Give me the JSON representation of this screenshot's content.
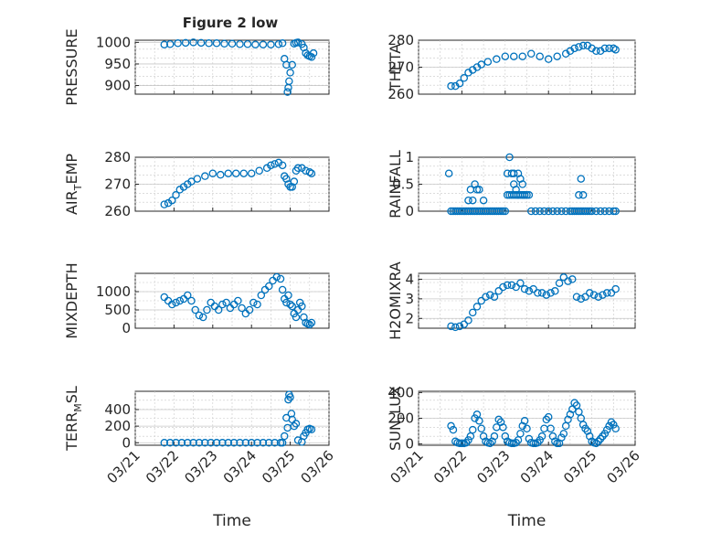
{
  "figure": {
    "title": "Figure 2 low",
    "xlabel": "Time",
    "x_tick_labels": [
      "03/21",
      "03/22",
      "03/23",
      "03/24",
      "03/25",
      "03/26"
    ]
  },
  "colors": {
    "marker": "#0072BD",
    "axis": "#262626",
    "grid": "#c8c8c8"
  },
  "chart_data": [
    {
      "type": "scatter",
      "name": "pressure",
      "ylabel": "PRESSURE",
      "ylabel_sub": null,
      "xlim": [
        0,
        5
      ],
      "ylim": [
        880,
        1005
      ],
      "yticks": [
        900,
        950,
        1000
      ],
      "xlabel": "",
      "x": [
        0.75,
        0.9,
        1.1,
        1.3,
        1.5,
        1.7,
        1.9,
        2.1,
        2.3,
        2.5,
        2.7,
        2.9,
        3.1,
        3.3,
        3.5,
        3.7,
        3.8,
        3.85,
        3.9,
        3.93,
        3.95,
        3.97,
        4.0,
        4.05,
        4.1,
        4.15,
        4.2,
        4.3,
        4.35,
        4.4,
        4.45,
        4.5,
        4.55,
        4.6
      ],
      "y": [
        995,
        996,
        998,
        999,
        1000,
        999,
        998,
        998,
        997,
        997,
        996,
        996,
        995,
        995,
        995,
        996,
        998,
        962,
        948,
        885,
        895,
        910,
        930,
        948,
        997,
        999,
        1000,
        996,
        988,
        975,
        970,
        968,
        966,
        975
      ]
    },
    {
      "type": "scatter",
      "name": "theta",
      "ylabel": "THETA",
      "ylabel_sub": null,
      "xlim": [
        0,
        5
      ],
      "ylim": [
        260,
        280
      ],
      "yticks": [
        260,
        270,
        280
      ],
      "xlabel": "",
      "x": [
        0.75,
        0.85,
        0.95,
        1.05,
        1.15,
        1.25,
        1.35,
        1.45,
        1.6,
        1.8,
        2.0,
        2.2,
        2.4,
        2.6,
        2.8,
        3.0,
        3.2,
        3.4,
        3.5,
        3.6,
        3.7,
        3.8,
        3.9,
        4.0,
        4.1,
        4.2,
        4.3,
        4.4,
        4.5,
        4.55
      ],
      "y": [
        263,
        263,
        264,
        266,
        268,
        269,
        270,
        271,
        272,
        273,
        274,
        274,
        274,
        275,
        274,
        273,
        274,
        275,
        276,
        277,
        277.5,
        278,
        278,
        277,
        276,
        276,
        277,
        277,
        277,
        276.5
      ]
    },
    {
      "type": "scatter",
      "name": "air_temp",
      "ylabel": "AIR",
      "ylabel_sub": "T",
      "ylabel_tail": "EMP",
      "xlim": [
        0,
        5
      ],
      "ylim": [
        260,
        280
      ],
      "yticks": [
        260,
        270,
        280
      ],
      "xlabel": "",
      "x": [
        0.75,
        0.85,
        0.95,
        1.05,
        1.15,
        1.25,
        1.35,
        1.45,
        1.6,
        1.8,
        2.0,
        2.2,
        2.4,
        2.6,
        2.8,
        3.0,
        3.2,
        3.4,
        3.5,
        3.6,
        3.7,
        3.8,
        3.85,
        3.9,
        3.95,
        4.0,
        4.05,
        4.1,
        4.15,
        4.2,
        4.3,
        4.4,
        4.5,
        4.55
      ],
      "y": [
        262.5,
        263,
        264,
        266,
        268,
        269,
        270,
        271,
        272,
        273,
        274,
        273.5,
        274,
        274,
        274,
        274,
        275,
        276,
        277,
        277.5,
        278,
        277,
        273,
        272,
        270,
        269,
        269,
        271,
        275,
        276,
        276,
        275,
        274.5,
        274
      ]
    },
    {
      "type": "scatter",
      "name": "rainfall",
      "ylabel": "RAINFALL",
      "ylabel_sub": null,
      "xlim": [
        0,
        5
      ],
      "ylim": [
        0,
        1
      ],
      "yticks": [
        0,
        0.5,
        1
      ],
      "ytick_labels": [
        "0",
        "0.5",
        "1"
      ],
      "xlabel": "",
      "x": [
        0.7,
        0.75,
        0.8,
        0.85,
        0.9,
        0.95,
        1.0,
        1.05,
        1.1,
        1.15,
        1.2,
        1.25,
        1.3,
        1.35,
        1.4,
        1.45,
        1.5,
        1.55,
        1.6,
        1.65,
        1.7,
        1.75,
        1.8,
        1.85,
        1.9,
        1.95,
        2.0,
        2.05,
        2.1,
        2.15,
        2.2,
        2.25,
        2.3,
        2.35,
        2.4,
        2.45,
        2.5,
        2.55,
        2.6,
        2.7,
        2.8,
        2.9,
        3.0,
        3.1,
        3.2,
        3.3,
        3.4,
        3.5,
        3.55,
        3.6,
        3.65,
        3.7,
        3.75,
        3.8,
        3.85,
        3.9,
        3.95,
        4.0,
        4.1,
        4.2,
        4.3,
        4.4,
        4.5,
        4.55,
        1.15,
        1.2,
        1.25,
        1.35,
        1.4,
        1.5,
        2.05,
        2.1,
        2.15,
        2.2,
        2.25,
        2.3,
        2.35,
        2.4,
        2.45,
        3.7,
        3.75,
        3.8,
        1.3,
        2.2,
        2.3,
        2.4
      ],
      "y": [
        0.7,
        0,
        0,
        0,
        0,
        0,
        0,
        0,
        0,
        0,
        0,
        0,
        0,
        0,
        0,
        0,
        0,
        0,
        0,
        0,
        0,
        0,
        0,
        0,
        0,
        0,
        0,
        0.3,
        0.3,
        0.3,
        0.3,
        0.3,
        0.3,
        0.3,
        0.3,
        0.3,
        0.3,
        0.3,
        0,
        0,
        0,
        0,
        0,
        0,
        0,
        0,
        0,
        0,
        0,
        0,
        0,
        0,
        0,
        0,
        0,
        0,
        0,
        0,
        0,
        0,
        0,
        0,
        0,
        0,
        0.2,
        0.4,
        0.2,
        0.4,
        0.4,
        0.2,
        0.7,
        1.0,
        0.7,
        0.5,
        0.4,
        0.7,
        0.6,
        0.5,
        0.3,
        0.3,
        0.6,
        0.3,
        0.5,
        0.7,
        0.3,
        0.3
      ]
    },
    {
      "type": "scatter",
      "name": "mixdepth",
      "ylabel": "MIXDEPTH",
      "ylabel_sub": null,
      "xlim": [
        0,
        5
      ],
      "ylim": [
        0,
        1500
      ],
      "yticks": [
        0,
        500,
        1000
      ],
      "xlabel": "",
      "x": [
        0.75,
        0.85,
        0.95,
        1.05,
        1.15,
        1.25,
        1.35,
        1.45,
        1.55,
        1.65,
        1.75,
        1.85,
        1.95,
        2.05,
        2.15,
        2.25,
        2.35,
        2.45,
        2.55,
        2.65,
        2.75,
        2.85,
        2.95,
        3.05,
        3.15,
        3.25,
        3.35,
        3.45,
        3.55,
        3.65,
        3.75,
        3.8,
        3.85,
        3.9,
        3.95,
        4.0,
        4.05,
        4.1,
        4.15,
        4.2,
        4.25,
        4.3,
        4.35,
        4.4,
        4.45,
        4.5,
        4.55
      ],
      "y": [
        850,
        750,
        650,
        700,
        750,
        800,
        900,
        750,
        500,
        350,
        300,
        500,
        700,
        600,
        500,
        650,
        700,
        550,
        650,
        750,
        550,
        400,
        500,
        700,
        650,
        900,
        1050,
        1150,
        1300,
        1400,
        1350,
        1050,
        800,
        700,
        900,
        650,
        600,
        400,
        300,
        500,
        700,
        600,
        300,
        150,
        120,
        100,
        150
      ]
    },
    {
      "type": "scatter",
      "name": "h2omixra",
      "ylabel": "H2OMIXRA",
      "ylabel_sub": null,
      "xlim": [
        0,
        5
      ],
      "ylim": [
        1.5,
        4.3
      ],
      "yticks": [
        2,
        3,
        4
      ],
      "xlabel": "",
      "x": [
        0.75,
        0.85,
        0.95,
        1.05,
        1.15,
        1.25,
        1.35,
        1.45,
        1.55,
        1.65,
        1.75,
        1.85,
        1.95,
        2.05,
        2.15,
        2.25,
        2.35,
        2.45,
        2.55,
        2.65,
        2.75,
        2.85,
        2.95,
        3.05,
        3.15,
        3.25,
        3.35,
        3.45,
        3.55,
        3.65,
        3.75,
        3.85,
        3.95,
        4.05,
        4.15,
        4.25,
        4.35,
        4.45,
        4.55
      ],
      "y": [
        1.6,
        1.55,
        1.6,
        1.7,
        1.9,
        2.3,
        2.6,
        2.9,
        3.1,
        3.2,
        3.1,
        3.4,
        3.6,
        3.7,
        3.7,
        3.6,
        3.8,
        3.5,
        3.4,
        3.5,
        3.3,
        3.3,
        3.2,
        3.3,
        3.4,
        3.8,
        4.1,
        3.9,
        4.0,
        3.1,
        3.0,
        3.1,
        3.3,
        3.2,
        3.1,
        3.2,
        3.3,
        3.3,
        3.5
      ]
    },
    {
      "type": "scatter",
      "name": "terr_msl",
      "ylabel": "TERR",
      "ylabel_sub": "M",
      "ylabel_tail": "SL",
      "xlim": [
        0,
        5
      ],
      "ylim": [
        -30,
        620
      ],
      "yticks": [
        0,
        200,
        400
      ],
      "xlabel": "Time",
      "x": [
        0.75,
        0.9,
        1.05,
        1.2,
        1.35,
        1.5,
        1.65,
        1.8,
        1.95,
        2.1,
        2.25,
        2.4,
        2.55,
        2.7,
        2.85,
        3.0,
        3.15,
        3.3,
        3.45,
        3.6,
        3.75,
        3.8,
        3.85,
        3.9,
        3.93,
        3.95,
        3.97,
        4.0,
        4.03,
        4.05,
        4.1,
        4.15,
        4.2,
        4.3,
        4.35,
        4.4,
        4.45,
        4.5,
        4.55
      ],
      "y": [
        0,
        0,
        0,
        0,
        0,
        0,
        0,
        0,
        0,
        0,
        0,
        0,
        0,
        0,
        0,
        0,
        0,
        0,
        0,
        0,
        0,
        0,
        80,
        300,
        180,
        520,
        580,
        550,
        350,
        280,
        200,
        230,
        30,
        10,
        80,
        120,
        160,
        170,
        160
      ]
    },
    {
      "type": "scatter",
      "name": "sun_flux",
      "ylabel": "SUN",
      "ylabel_sub": "F",
      "ylabel_tail": "LUX",
      "xlim": [
        0,
        5
      ],
      "ylim": [
        -10,
        410
      ],
      "yticks": [
        0,
        200,
        400
      ],
      "xlabel": "Time",
      "x": [
        0.75,
        0.8,
        0.85,
        0.9,
        0.95,
        1.0,
        1.05,
        1.1,
        1.15,
        1.2,
        1.25,
        1.3,
        1.35,
        1.4,
        1.45,
        1.5,
        1.55,
        1.6,
        1.65,
        1.7,
        1.75,
        1.8,
        1.85,
        1.9,
        1.95,
        2.0,
        2.05,
        2.1,
        2.15,
        2.2,
        2.25,
        2.3,
        2.35,
        2.4,
        2.45,
        2.5,
        2.55,
        2.6,
        2.65,
        2.7,
        2.75,
        2.8,
        2.85,
        2.9,
        2.95,
        3.0,
        3.05,
        3.1,
        3.15,
        3.2,
        3.25,
        3.3,
        3.35,
        3.4,
        3.45,
        3.5,
        3.55,
        3.6,
        3.65,
        3.7,
        3.75,
        3.8,
        3.85,
        3.9,
        3.95,
        4.0,
        4.05,
        4.1,
        4.15,
        4.2,
        4.25,
        4.3,
        4.35,
        4.4,
        4.45,
        4.5,
        4.55
      ],
      "y": [
        140,
        110,
        20,
        10,
        5,
        5,
        5,
        10,
        30,
        60,
        110,
        200,
        230,
        180,
        120,
        60,
        20,
        10,
        5,
        20,
        60,
        130,
        190,
        170,
        130,
        60,
        20,
        10,
        5,
        5,
        10,
        30,
        80,
        140,
        180,
        120,
        40,
        10,
        5,
        5,
        10,
        30,
        60,
        120,
        190,
        210,
        120,
        60,
        20,
        5,
        5,
        50,
        80,
        140,
        190,
        230,
        270,
        320,
        300,
        250,
        200,
        150,
        120,
        100,
        60,
        20,
        10,
        5,
        20,
        40,
        60,
        80,
        110,
        140,
        170,
        150,
        120
      ]
    }
  ]
}
